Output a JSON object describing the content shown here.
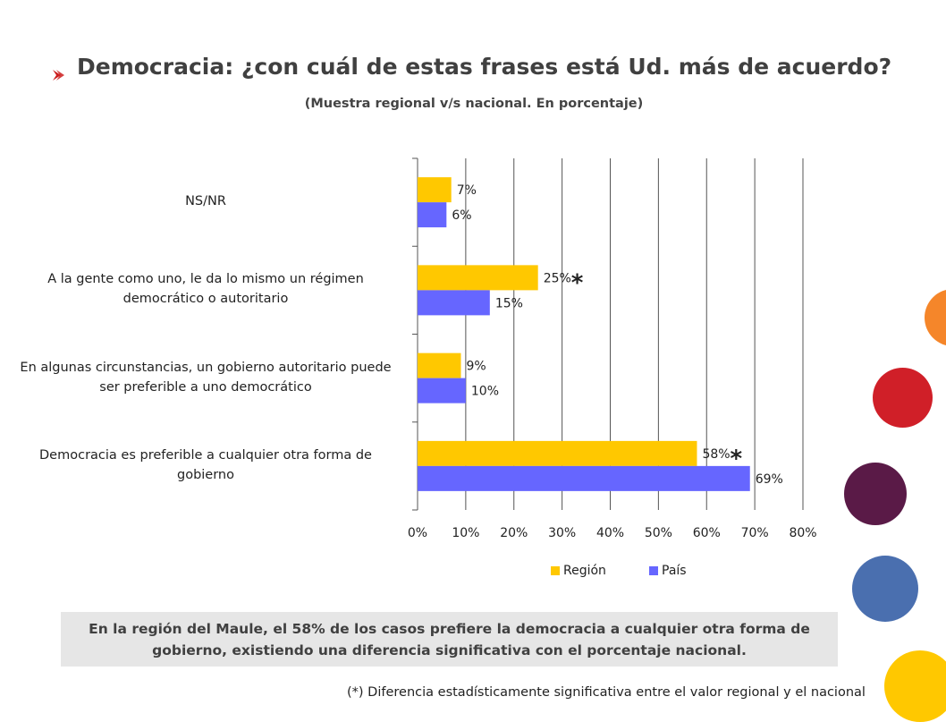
{
  "slide": {
    "title": "Democracia: ¿con cuál de estas frases está Ud. más de acuerdo?",
    "subtitle": "(Muestra regional v/s nacional. En porcentaje)",
    "note": "En la región del Maule, el 58% de los casos prefiere la democracia a cualquier otra forma de gobierno, existiendo una diferencia significativa con el porcentaje nacional.",
    "footnote": "(*) Diferencia estadísticamente significativa entre el valor regional y el nacional"
  },
  "colors": {
    "region": "#FFC800",
    "pais": "#6666FF",
    "chevron": "#CC1F1F",
    "grid": "#555555",
    "circles": [
      "#F5862A",
      "#D01F28",
      "#5A1A47",
      "#4A6FAF",
      "#FFC800"
    ]
  },
  "chart_data": {
    "type": "bar",
    "orientation": "horizontal",
    "categories": [
      "NS/NR",
      "A la gente como uno, le da lo mismo un régimen democrático o autoritario",
      "En algunas circunstancias, un gobierno autoritario puede ser preferible a uno democrático",
      "Democracia es preferible a cualquier otra forma de gobierno"
    ],
    "series": [
      {
        "name": "Región",
        "values": [
          7,
          25,
          9,
          58
        ],
        "labels": [
          "7%",
          "25%",
          "9%",
          "58%"
        ]
      },
      {
        "name": "País",
        "values": [
          6,
          15,
          10,
          69
        ],
        "labels": [
          "6%",
          "15%",
          "10%",
          "69%"
        ]
      }
    ],
    "significant": [
      false,
      true,
      false,
      true
    ],
    "significance_marker": "*",
    "xlim": [
      0,
      80
    ],
    "xticks": [
      "0%",
      "10%",
      "20%",
      "30%",
      "40%",
      "50%",
      "60%",
      "70%",
      "80%"
    ],
    "grid": true,
    "legend_position": "bottom"
  }
}
